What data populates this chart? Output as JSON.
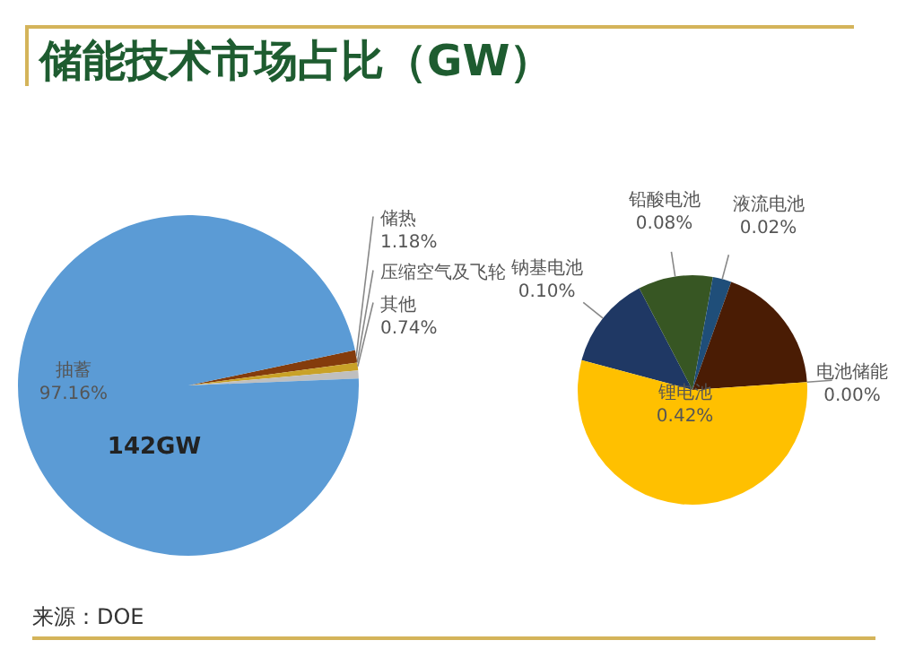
{
  "chart_data": [
    {
      "type": "pie",
      "title": "储能技术市场占比（GW）",
      "categories": [
        "储热",
        "压缩空气及飞轮",
        "其他",
        null,
        "抽蓄"
      ],
      "values": [
        1.18,
        null,
        0.74,
        0.76,
        97.16
      ],
      "value_labels": [
        "1.18%",
        null,
        "0.74%",
        null,
        "97.16%"
      ],
      "colors": [
        "#843c0c",
        "#7f7f7f",
        "#c9a227",
        "#bfbfbf",
        "#5b9bd5"
      ],
      "annotations": [
        {
          "text": "142GW",
          "x": "抽蓄"
        },
        "来源：DOE"
      ]
    },
    {
      "type": "pie",
      "categories": [
        "钠基电池",
        "铅酸电池",
        "液流电池",
        null,
        "电池储能",
        "锂电池"
      ],
      "values": [
        0.1,
        0.08,
        0.02,
        0.14,
        0.0,
        0.42
      ],
      "value_labels": [
        "0.10%",
        "0.08%",
        "0.02%",
        null,
        "0.00%",
        "0.42%"
      ],
      "colors": [
        "#1f3864",
        "#375623",
        "#1f4e79",
        "#4a1c04",
        "#a5a5a5",
        "#ffc000"
      ]
    }
  ]
}
